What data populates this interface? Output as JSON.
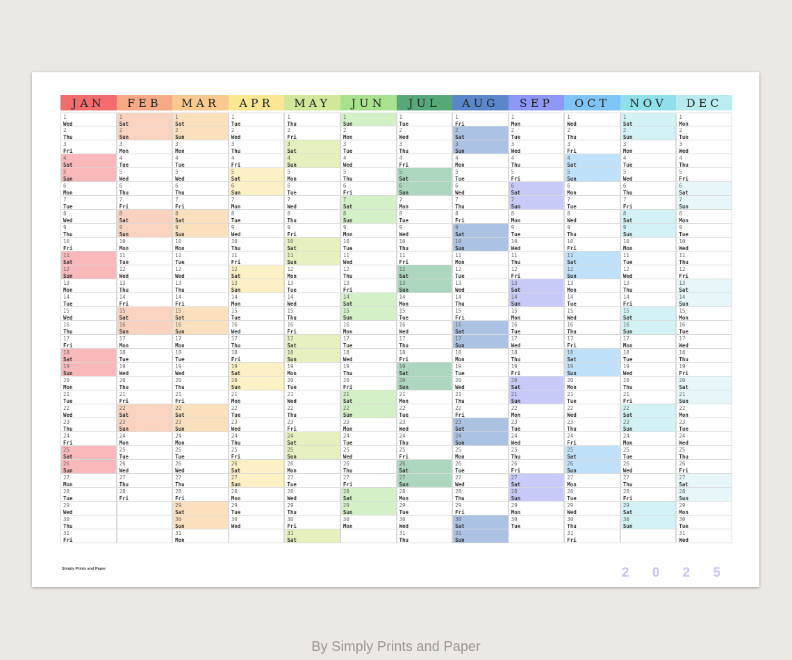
{
  "year_digits": "2 0 2 5",
  "brand_small": "Simply Prints and Paper",
  "caption": "By Simply Prints and Paper",
  "months": [
    {
      "label": "JAN",
      "header_color": "#f26d6d",
      "weekend_color": "#f9b9bb",
      "days": 31,
      "start_dow": 3
    },
    {
      "label": "FEB",
      "header_color": "#f7a886",
      "weekend_color": "#fad3c0",
      "days": 28,
      "start_dow": 6
    },
    {
      "label": "MAR",
      "header_color": "#f9c98f",
      "weekend_color": "#fbe0bd",
      "days": 31,
      "start_dow": 6
    },
    {
      "label": "APR",
      "header_color": "#fbe693",
      "weekend_color": "#fcf1c5",
      "days": 30,
      "start_dow": 2
    },
    {
      "label": "MAY",
      "header_color": "#d1e89a",
      "weekend_color": "#e4f0bd",
      "days": 31,
      "start_dow": 4
    },
    {
      "label": "JUN",
      "header_color": "#a8e28e",
      "weekend_color": "#d4f0c7",
      "days": 30,
      "start_dow": 0
    },
    {
      "label": "JUL",
      "header_color": "#56a878",
      "weekend_color": "#acd6bd",
      "days": 31,
      "start_dow": 2
    },
    {
      "label": "AUG",
      "header_color": "#5b86c9",
      "weekend_color": "#abc2e3",
      "days": 31,
      "start_dow": 5
    },
    {
      "label": "SEP",
      "header_color": "#8d97f5",
      "weekend_color": "#c8cbfa",
      "days": 30,
      "start_dow": 1
    },
    {
      "label": "OCT",
      "header_color": "#7ec4f6",
      "weekend_color": "#bfe2fa",
      "days": 31,
      "start_dow": 3
    },
    {
      "label": "NOV",
      "header_color": "#8fe0ea",
      "weekend_color": "#d3f2f5",
      "days": 30,
      "start_dow": 6
    },
    {
      "label": "DEC",
      "header_color": "#b8ecf1",
      "weekend_color": "#e7f7f9",
      "days": 31,
      "start_dow": 1
    }
  ],
  "weekday_names": [
    "Sun",
    "Mon",
    "Tue",
    "Wed",
    "Thu",
    "Fri",
    "Sat"
  ],
  "max_rows": 31
}
